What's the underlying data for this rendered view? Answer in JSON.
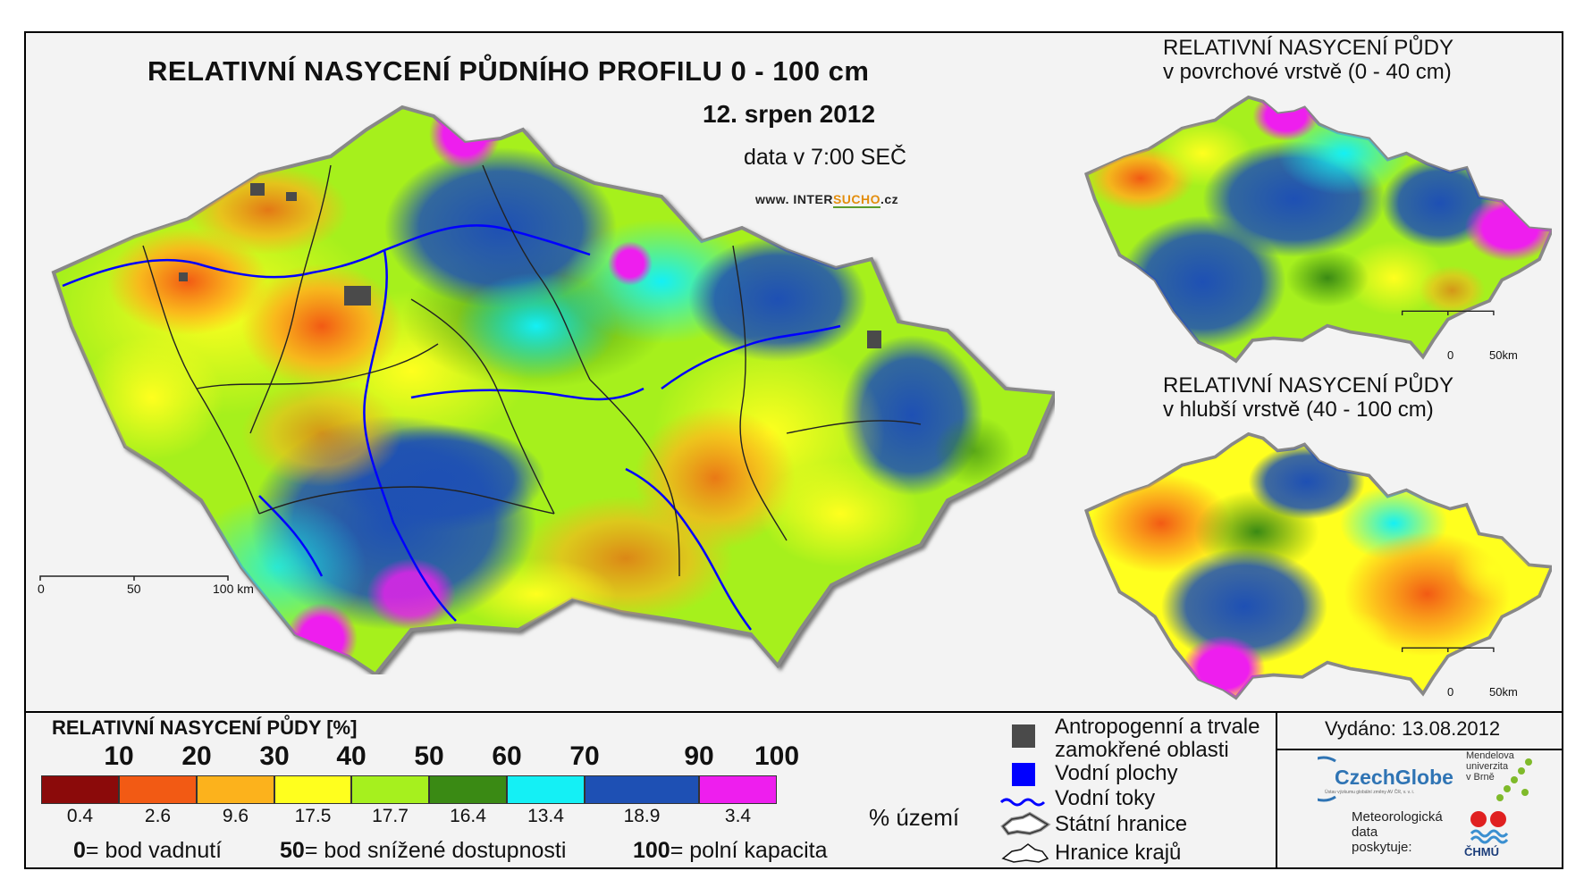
{
  "header": {
    "title": "RELATIVNÍ NASYCENÍ PŮDNÍHO PROFILU 0 - 100 cm",
    "date": "12. srpen 2012",
    "data_time": "data v 7:00 SEČ",
    "website_prefix": "www. INTER",
    "website_brand": "SUCHO",
    "website_suffix": ".cz"
  },
  "main_map": {
    "scale_labels": [
      "0",
      "50",
      "100 km"
    ]
  },
  "inset_top": {
    "title_line1": "RELATIVNÍ NASYCENÍ PŮDY",
    "title_line2": "v povrchové vrstvě (0 - 40 cm)",
    "scale_labels": [
      "0",
      "50km"
    ]
  },
  "inset_bottom": {
    "title_line1": "RELATIVNÍ NASYCENÍ PŮDY",
    "title_line2": "v hlubší vrstvě (40 - 100 cm)",
    "scale_labels": [
      "0",
      "50km"
    ]
  },
  "legend": {
    "title": "RELATIVNÍ NASYCENÍ PŮDY [%]",
    "ticks": [
      "10",
      "20",
      "30",
      "40",
      "50",
      "60",
      "70",
      "90",
      "100"
    ],
    "classes": [
      {
        "color": "#8b0a0a",
        "share": "0.4"
      },
      {
        "color": "#f25a14",
        "share": "2.6"
      },
      {
        "color": "#fcb21c",
        "share": "9.6"
      },
      {
        "color": "#ffff1e",
        "share": "17.5"
      },
      {
        "color": "#a6f01e",
        "share": "17.7"
      },
      {
        "color": "#3a8a14",
        "share": "16.4"
      },
      {
        "color": "#14f0f5",
        "share": "13.4"
      },
      {
        "color": "#1e50b4",
        "share": "18.9"
      },
      {
        "color": "#ee1eee",
        "share": "3.4"
      }
    ],
    "share_unit": "% území",
    "explanations": [
      {
        "num": "0",
        "text": "= bod vadnutí"
      },
      {
        "num": "50",
        "text": "= bod snížené dostupnosti"
      },
      {
        "num": "100",
        "text": "= polní kapacita"
      }
    ]
  },
  "symbols": {
    "anthropogenic_line1": "Antropogenní a trvale",
    "anthropogenic_line2": "zamokřené oblasti",
    "water_bodies": "Vodní plochy",
    "water_courses": "Vodní toky",
    "state_border": "Státní hranice",
    "region_border": "Hranice krajů",
    "anthropogenic_color": "#4a4a4a",
    "water_color": "#0000ff"
  },
  "issued": "Vydáno: 13.08.2012",
  "logos": {
    "czechglobe": "CzechGlobe",
    "czechglobe_sub": "Ústav výzkumu globální změny AV ČR, v. v. i.",
    "mendel_line1": "Mendelova",
    "mendel_line2": "univerzita",
    "mendel_line3": "v Brně",
    "meteo_line1": "Meteorologická",
    "meteo_line2": "data",
    "meteo_line3": "poskytuje:",
    "chmu": "ČHMÚ"
  }
}
